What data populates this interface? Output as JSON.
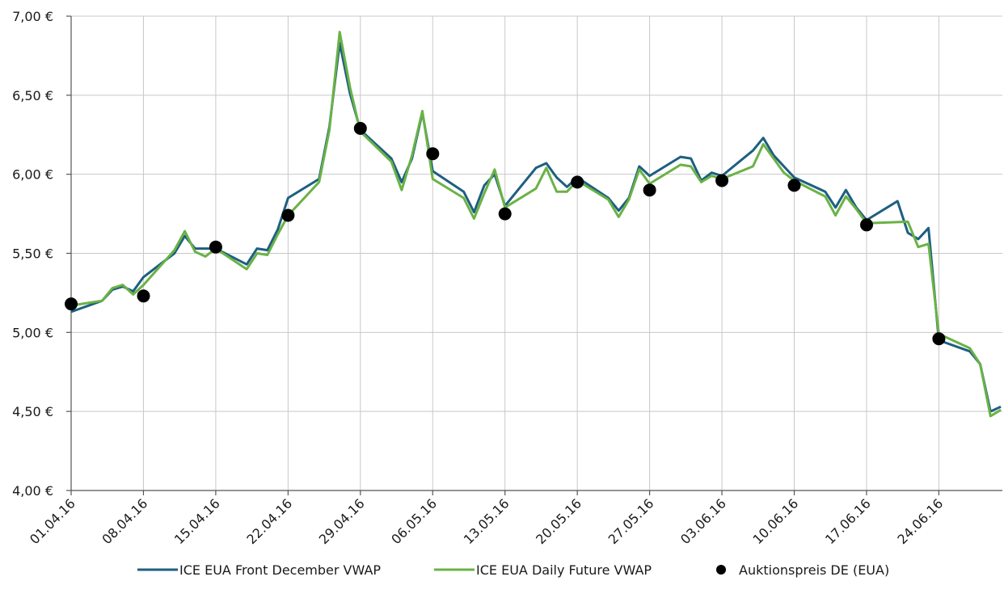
{
  "chart_data": {
    "type": "line",
    "title": "",
    "xlabel": "",
    "ylabel": "",
    "ylim": [
      4.0,
      7.0
    ],
    "y_ticks": [
      "4,00 €",
      "4,50 €",
      "5,00 €",
      "5,50 €",
      "6,00 €",
      "6,50 €",
      "7,00 €"
    ],
    "x_ticks": [
      "01.04.16",
      "08.04.16",
      "15.04.16",
      "22.04.16",
      "29.04.16",
      "06.05.16",
      "13.05.16",
      "20.05.16",
      "27.05.16",
      "03.06.16",
      "10.06.16",
      "17.06.16",
      "24.06.16"
    ],
    "x_range": [
      "01.04.16",
      "30.06.16"
    ],
    "grid": true,
    "legend_position": "bottom",
    "colors": {
      "front_december": "#1d5f80",
      "daily_future": "#6ab245",
      "auction": "#000000"
    },
    "series": [
      {
        "name": "ICE EUA Front December VWAP",
        "type": "line",
        "points": [
          {
            "x": "01.04.16",
            "y": 5.13
          },
          {
            "x": "04.04.16",
            "y": 5.2
          },
          {
            "x": "05.04.16",
            "y": 5.27
          },
          {
            "x": "06.04.16",
            "y": 5.29
          },
          {
            "x": "07.04.16",
            "y": 5.26
          },
          {
            "x": "08.04.16",
            "y": 5.35
          },
          {
            "x": "11.04.16",
            "y": 5.5
          },
          {
            "x": "12.04.16",
            "y": 5.61
          },
          {
            "x": "13.04.16",
            "y": 5.53
          },
          {
            "x": "14.04.16",
            "y": 5.53
          },
          {
            "x": "15.04.16",
            "y": 5.53
          },
          {
            "x": "18.04.16",
            "y": 5.43
          },
          {
            "x": "19.04.16",
            "y": 5.53
          },
          {
            "x": "20.04.16",
            "y": 5.52
          },
          {
            "x": "21.04.16",
            "y": 5.65
          },
          {
            "x": "22.04.16",
            "y": 5.85
          },
          {
            "x": "25.04.16",
            "y": 5.97
          },
          {
            "x": "26.04.16",
            "y": 6.3
          },
          {
            "x": "27.04.16",
            "y": 6.83
          },
          {
            "x": "28.04.16",
            "y": 6.51
          },
          {
            "x": "29.04.16",
            "y": 6.28
          },
          {
            "x": "02.05.16",
            "y": 6.1
          },
          {
            "x": "03.05.16",
            "y": 5.95
          },
          {
            "x": "04.05.16",
            "y": 6.1
          },
          {
            "x": "05.05.16",
            "y": 6.39
          },
          {
            "x": "06.05.16",
            "y": 6.02
          },
          {
            "x": "09.05.16",
            "y": 5.89
          },
          {
            "x": "10.05.16",
            "y": 5.76
          },
          {
            "x": "11.05.16",
            "y": 5.93
          },
          {
            "x": "12.05.16",
            "y": 6.0
          },
          {
            "x": "13.05.16",
            "y": 5.8
          },
          {
            "x": "16.05.16",
            "y": 6.04
          },
          {
            "x": "17.05.16",
            "y": 6.07
          },
          {
            "x": "18.05.16",
            "y": 5.98
          },
          {
            "x": "19.05.16",
            "y": 5.92
          },
          {
            "x": "20.05.16",
            "y": 5.98
          },
          {
            "x": "23.05.16",
            "y": 5.85
          },
          {
            "x": "24.05.16",
            "y": 5.77
          },
          {
            "x": "25.05.16",
            "y": 5.85
          },
          {
            "x": "26.05.16",
            "y": 6.05
          },
          {
            "x": "27.05.16",
            "y": 5.99
          },
          {
            "x": "30.05.16",
            "y": 6.11
          },
          {
            "x": "31.05.16",
            "y": 6.1
          },
          {
            "x": "01.06.16",
            "y": 5.96
          },
          {
            "x": "02.06.16",
            "y": 6.01
          },
          {
            "x": "03.06.16",
            "y": 5.99
          },
          {
            "x": "06.06.16",
            "y": 6.15
          },
          {
            "x": "07.06.16",
            "y": 6.23
          },
          {
            "x": "08.06.16",
            "y": 6.12
          },
          {
            "x": "09.06.16",
            "y": 6.05
          },
          {
            "x": "10.06.16",
            "y": 5.98
          },
          {
            "x": "13.06.16",
            "y": 5.89
          },
          {
            "x": "14.06.16",
            "y": 5.79
          },
          {
            "x": "15.06.16",
            "y": 5.9
          },
          {
            "x": "16.06.16",
            "y": 5.79
          },
          {
            "x": "17.06.16",
            "y": 5.71
          },
          {
            "x": "20.06.16",
            "y": 5.83
          },
          {
            "x": "21.06.16",
            "y": 5.63
          },
          {
            "x": "22.06.16",
            "y": 5.59
          },
          {
            "x": "23.06.16",
            "y": 5.66
          },
          {
            "x": "24.06.16",
            "y": 4.95
          },
          {
            "x": "27.06.16",
            "y": 4.88
          },
          {
            "x": "28.06.16",
            "y": 4.8
          },
          {
            "x": "29.06.16",
            "y": 4.5
          },
          {
            "x": "30.06.16",
            "y": 4.53
          }
        ]
      },
      {
        "name": "ICE EUA Daily Future VWAP",
        "type": "line",
        "points": [
          {
            "x": "01.04.16",
            "y": 5.17
          },
          {
            "x": "04.04.16",
            "y": 5.2
          },
          {
            "x": "05.04.16",
            "y": 5.28
          },
          {
            "x": "06.04.16",
            "y": 5.3
          },
          {
            "x": "07.04.16",
            "y": 5.24
          },
          {
            "x": "08.04.16",
            "y": 5.3
          },
          {
            "x": "11.04.16",
            "y": 5.52
          },
          {
            "x": "12.04.16",
            "y": 5.64
          },
          {
            "x": "13.04.16",
            "y": 5.51
          },
          {
            "x": "14.04.16",
            "y": 5.48
          },
          {
            "x": "15.04.16",
            "y": 5.53
          },
          {
            "x": "18.04.16",
            "y": 5.4
          },
          {
            "x": "19.04.16",
            "y": 5.5
          },
          {
            "x": "20.04.16",
            "y": 5.49
          },
          {
            "x": "21.04.16",
            "y": 5.62
          },
          {
            "x": "22.04.16",
            "y": 5.74
          },
          {
            "x": "25.04.16",
            "y": 5.95
          },
          {
            "x": "26.04.16",
            "y": 6.28
          },
          {
            "x": "27.04.16",
            "y": 6.9
          },
          {
            "x": "28.04.16",
            "y": 6.55
          },
          {
            "x": "29.04.16",
            "y": 6.27
          },
          {
            "x": "02.05.16",
            "y": 6.08
          },
          {
            "x": "03.05.16",
            "y": 5.9
          },
          {
            "x": "04.05.16",
            "y": 6.12
          },
          {
            "x": "05.05.16",
            "y": 6.4
          },
          {
            "x": "06.05.16",
            "y": 5.97
          },
          {
            "x": "09.05.16",
            "y": 5.85
          },
          {
            "x": "10.05.16",
            "y": 5.72
          },
          {
            "x": "11.05.16",
            "y": 5.88
          },
          {
            "x": "12.05.16",
            "y": 6.03
          },
          {
            "x": "13.05.16",
            "y": 5.79
          },
          {
            "x": "16.05.16",
            "y": 5.91
          },
          {
            "x": "17.05.16",
            "y": 6.04
          },
          {
            "x": "18.05.16",
            "y": 5.89
          },
          {
            "x": "19.05.16",
            "y": 5.89
          },
          {
            "x": "20.05.16",
            "y": 5.96
          },
          {
            "x": "23.05.16",
            "y": 5.84
          },
          {
            "x": "24.05.16",
            "y": 5.73
          },
          {
            "x": "25.05.16",
            "y": 5.84
          },
          {
            "x": "26.05.16",
            "y": 6.03
          },
          {
            "x": "27.05.16",
            "y": 5.94
          },
          {
            "x": "30.05.16",
            "y": 6.06
          },
          {
            "x": "31.05.16",
            "y": 6.05
          },
          {
            "x": "01.06.16",
            "y": 5.95
          },
          {
            "x": "02.06.16",
            "y": 5.99
          },
          {
            "x": "03.06.16",
            "y": 5.97
          },
          {
            "x": "06.06.16",
            "y": 6.05
          },
          {
            "x": "07.06.16",
            "y": 6.19
          },
          {
            "x": "08.06.16",
            "y": 6.1
          },
          {
            "x": "09.06.16",
            "y": 6.01
          },
          {
            "x": "10.06.16",
            "y": 5.96
          },
          {
            "x": "13.06.16",
            "y": 5.86
          },
          {
            "x": "14.06.16",
            "y": 5.74
          },
          {
            "x": "15.06.16",
            "y": 5.86
          },
          {
            "x": "16.06.16",
            "y": 5.78
          },
          {
            "x": "17.06.16",
            "y": 5.69
          },
          {
            "x": "21.06.16",
            "y": 5.7
          },
          {
            "x": "22.06.16",
            "y": 5.54
          },
          {
            "x": "23.06.16",
            "y": 5.56
          },
          {
            "x": "24.06.16",
            "y": 4.99
          },
          {
            "x": "27.06.16",
            "y": 4.9
          },
          {
            "x": "28.06.16",
            "y": 4.8
          },
          {
            "x": "29.06.16",
            "y": 4.47
          },
          {
            "x": "30.06.16",
            "y": 4.51
          }
        ]
      },
      {
        "name": "Auktionspreis DE (EUA)",
        "type": "scatter",
        "points": [
          {
            "x": "01.04.16",
            "y": 5.18
          },
          {
            "x": "08.04.16",
            "y": 5.23
          },
          {
            "x": "15.04.16",
            "y": 5.54
          },
          {
            "x": "22.04.16",
            "y": 5.74
          },
          {
            "x": "29.04.16",
            "y": 6.29
          },
          {
            "x": "06.05.16",
            "y": 6.13
          },
          {
            "x": "13.05.16",
            "y": 5.75
          },
          {
            "x": "20.05.16",
            "y": 5.95
          },
          {
            "x": "27.05.16",
            "y": 5.9
          },
          {
            "x": "03.06.16",
            "y": 5.96
          },
          {
            "x": "10.06.16",
            "y": 5.93
          },
          {
            "x": "17.06.16",
            "y": 5.68
          },
          {
            "x": "24.06.16",
            "y": 4.96
          }
        ]
      }
    ]
  }
}
